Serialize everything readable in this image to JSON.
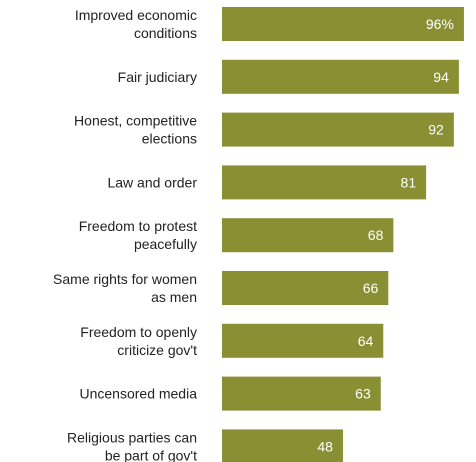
{
  "chart_data": {
    "type": "bar",
    "orientation": "horizontal",
    "categories": [
      [
        "Improved economic",
        "conditions"
      ],
      [
        "Fair judiciary"
      ],
      [
        "Honest, competitive",
        "elections"
      ],
      [
        "Law and order"
      ],
      [
        "Freedom to protest",
        "peacefully"
      ],
      [
        "Same rights for women",
        "as men"
      ],
      [
        "Freedom to openly",
        "criticize gov't"
      ],
      [
        "Uncensored media"
      ],
      [
        "Religious parties can",
        "be part of gov't"
      ]
    ],
    "values": [
      96,
      94,
      92,
      81,
      68,
      66,
      64,
      63,
      48
    ],
    "value_labels": [
      "96%",
      "94",
      "92",
      "81",
      "68",
      "66",
      "64",
      "63",
      "48"
    ],
    "xlim": [
      0,
      100
    ],
    "bar_color": "#8b8f34",
    "value_label_color": "#ffffff",
    "category_label_color": "#222222",
    "grid": false,
    "legend": false
  }
}
